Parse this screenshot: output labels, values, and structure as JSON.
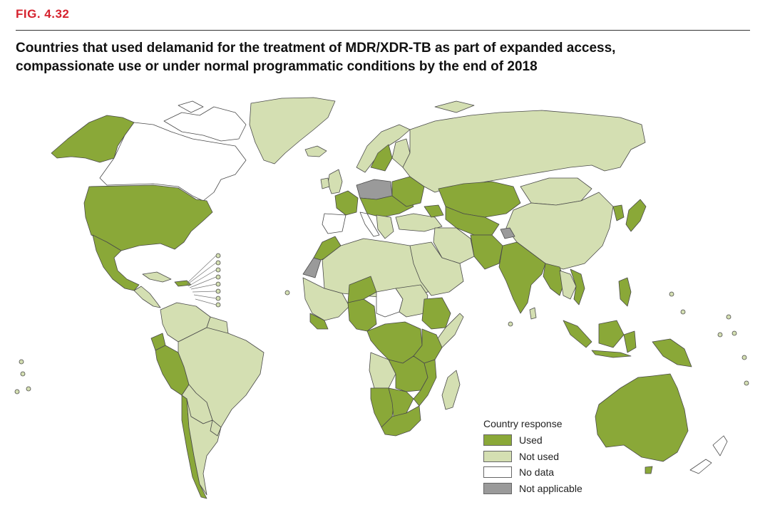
{
  "figure": {
    "label": "FIG. 4.32",
    "title_lines": [
      "Countries that used delamanid for the treatment of MDR/XDR-TB as part of expanded access,",
      "compassionate use or under normal programmatic conditions by the end of 2018"
    ]
  },
  "legend": {
    "title": "Country response",
    "items": [
      {
        "label": "Used",
        "color": "#8aa838"
      },
      {
        "label": "Not used",
        "color": "#d4dfb2"
      },
      {
        "label": "No data",
        "color": "#ffffff"
      },
      {
        "label": "Not applicable",
        "color": "#9a9a9a"
      }
    ]
  },
  "colors": {
    "used": "#8aa838",
    "not_used": "#d4dfb2",
    "no_data": "#ffffff",
    "not_applicable": "#9a9a9a",
    "border": "#4a4a4a",
    "fig_label": "#d6232f"
  }
}
